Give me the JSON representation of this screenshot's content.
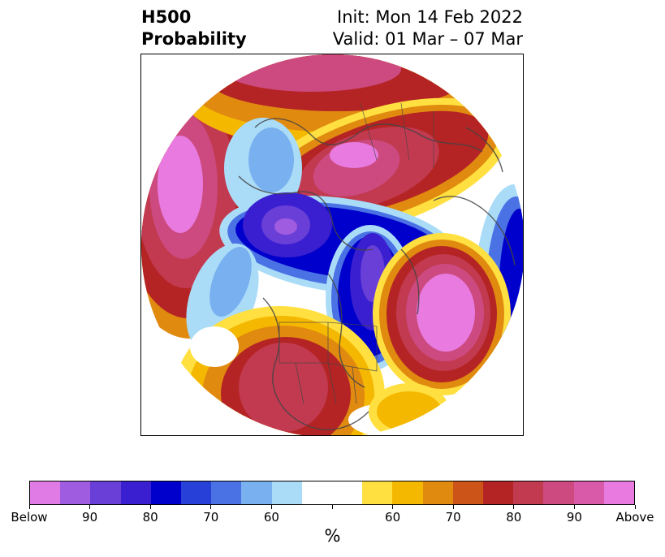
{
  "title": {
    "line1_left": "H500",
    "line2_left": "Probability",
    "line1_right": "Init: Mon 14 Feb 2022",
    "line2_right": "Valid: 01 Mar – 07 Mar"
  },
  "map": {
    "projection": "polar-stereographic-north",
    "basemap": "coastlines-countries-states"
  },
  "colorbar": {
    "unit": "%",
    "colors": [
      "#e07ae4",
      "#a05ce0",
      "#6a3fd8",
      "#3a1fd0",
      "#0000cc",
      "#2640d8",
      "#4a72e4",
      "#78b0f0",
      "#aadcf8",
      "#ffffff",
      "#ffffff",
      "#ffe040",
      "#f5b800",
      "#e08a10",
      "#cc5418",
      "#b52424",
      "#c23a50",
      "#cc4a80",
      "#d85aa8",
      "#e87ae0"
    ],
    "tick_labels": [
      "Below",
      "90",
      "80",
      "70",
      "60",
      "",
      "60",
      "70",
      "80",
      "90",
      "Above"
    ]
  }
}
